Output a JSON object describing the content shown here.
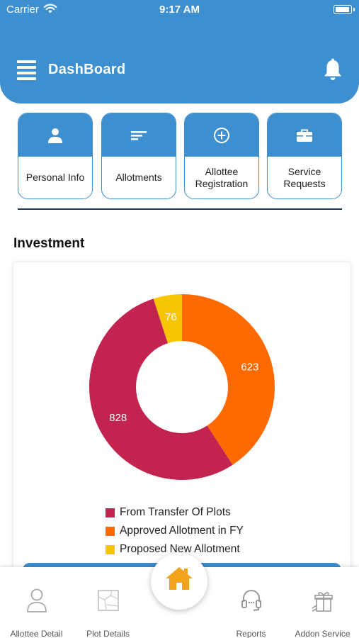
{
  "status_bar": {
    "carrier": "Carrier",
    "time": "9:17 AM"
  },
  "header": {
    "title": "DashBoard"
  },
  "tiles": [
    {
      "label": "Personal Info",
      "icon": "person-icon"
    },
    {
      "label": "Allotments",
      "icon": "lines-icon"
    },
    {
      "label": "Allottee Registration",
      "icon": "plus-circle-icon"
    },
    {
      "label": "Service Requests",
      "icon": "briefcase-icon"
    }
  ],
  "section": {
    "title": "Investment"
  },
  "chart_data": {
    "type": "pie",
    "donut": true,
    "slices": [
      {
        "label": "From Transfer Of Plots",
        "value": 828,
        "color": "#c2244f"
      },
      {
        "label": "Approved Allotment in FY",
        "value": 623,
        "color": "#ff6a00"
      },
      {
        "label": "Proposed New Allotment",
        "value": 76,
        "color": "#f7c600"
      }
    ],
    "legend_position": "bottom"
  },
  "bottom_nav": {
    "items": [
      {
        "label": "Allottee Detail",
        "icon": "user-outline-icon"
      },
      {
        "label": "Plot Details",
        "icon": "map-icon"
      },
      {
        "label": "Reports",
        "icon": "headset-icon"
      },
      {
        "label": "Addon Service",
        "icon": "gift-icon"
      }
    ],
    "home_icon": "home-icon"
  },
  "colors": {
    "primary": "#3d8fd0",
    "home_accent": "#f2a31b"
  }
}
